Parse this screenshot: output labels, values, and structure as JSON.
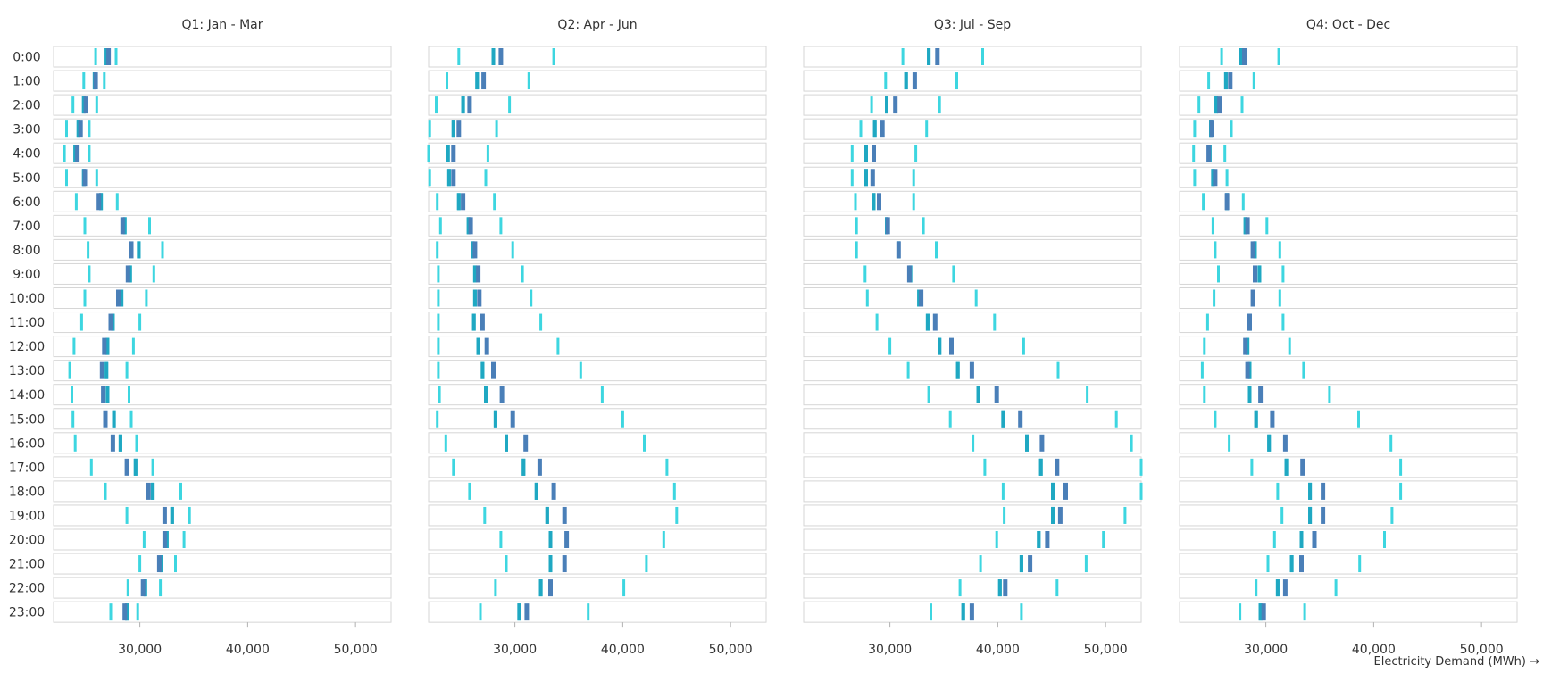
{
  "chart_data": {
    "type": "tick-strip",
    "x_axis_label": "Electricity Demand (MWh) →",
    "x_ticks": [
      30000,
      40000,
      50000
    ],
    "x_tick_labels": [
      "30,000",
      "40,000",
      "50,000"
    ],
    "xlim": [
      22000,
      53300
    ],
    "hours": [
      "0:00",
      "1:00",
      "2:00",
      "3:00",
      "4:00",
      "5:00",
      "6:00",
      "7:00",
      "8:00",
      "9:00",
      "10:00",
      "11:00",
      "12:00",
      "13:00",
      "14:00",
      "15:00",
      "16:00",
      "17:00",
      "18:00",
      "19:00",
      "20:00",
      "21:00",
      "22:00",
      "23:00"
    ],
    "colors": {
      "light": "#3dd6e0",
      "mid": "#1fa8c2",
      "dark": "#4a7fb8",
      "box_border": "#d6d6d6"
    },
    "marker_order": [
      "light_low",
      "mid_low",
      "dark",
      "mid_high",
      "light_high"
    ],
    "panels": [
      {
        "title": "Q1: Jan - Mar",
        "rows": [
          [
            25900,
            26900,
            27100,
            26900,
            27800
          ],
          [
            24800,
            25800,
            25900,
            25800,
            26700
          ],
          [
            23800,
            24800,
            25000,
            24800,
            26000
          ],
          [
            23200,
            24300,
            24500,
            24300,
            25300
          ],
          [
            23000,
            24000,
            24200,
            24000,
            25300
          ],
          [
            23200,
            24800,
            24900,
            24800,
            26000
          ],
          [
            24100,
            26400,
            26200,
            26400,
            27900
          ],
          [
            24900,
            28600,
            28400,
            28600,
            30900
          ],
          [
            25200,
            29900,
            29200,
            29900,
            32100
          ],
          [
            25300,
            29100,
            28900,
            29100,
            31300
          ],
          [
            24900,
            28300,
            28000,
            28300,
            30600
          ],
          [
            24600,
            27500,
            27300,
            27500,
            30000
          ],
          [
            23900,
            27000,
            26700,
            27000,
            29400
          ],
          [
            23500,
            26900,
            26500,
            26900,
            28800
          ],
          [
            23700,
            27000,
            26600,
            27000,
            29000
          ],
          [
            23800,
            27600,
            26800,
            27600,
            29200
          ],
          [
            24000,
            28200,
            27500,
            28200,
            29700
          ],
          [
            25500,
            29600,
            28800,
            29600,
            31200
          ],
          [
            26800,
            31200,
            30800,
            31200,
            33800
          ],
          [
            28800,
            33000,
            32300,
            33000,
            34600
          ],
          [
            30400,
            32500,
            32300,
            32500,
            34100
          ],
          [
            30000,
            32000,
            31800,
            32000,
            33300
          ],
          [
            28900,
            30500,
            30300,
            30500,
            31900
          ],
          [
            27300,
            28800,
            28600,
            28800,
            29800
          ]
        ]
      },
      {
        "title": "Q2: Apr - Jun",
        "rows": [
          [
            24800,
            28000,
            28700,
            28000,
            33600
          ],
          [
            23700,
            26500,
            27100,
            26500,
            31300
          ],
          [
            22700,
            25200,
            25800,
            25200,
            29500
          ],
          [
            22100,
            24300,
            24800,
            24300,
            28300
          ],
          [
            22000,
            23800,
            24300,
            23800,
            27500
          ],
          [
            22100,
            23900,
            24300,
            23900,
            27300
          ],
          [
            22800,
            24800,
            25200,
            24800,
            28100
          ],
          [
            23100,
            25700,
            25900,
            25700,
            28700
          ],
          [
            22800,
            26100,
            26300,
            26100,
            29800
          ],
          [
            22900,
            26300,
            26600,
            26300,
            30700
          ],
          [
            22900,
            26300,
            26700,
            26300,
            31500
          ],
          [
            22900,
            26200,
            27000,
            26200,
            32400
          ],
          [
            22900,
            26600,
            27400,
            26600,
            34000
          ],
          [
            22900,
            27000,
            28000,
            27000,
            36100
          ],
          [
            23000,
            27300,
            28800,
            27300,
            38100
          ],
          [
            22800,
            28200,
            29800,
            28200,
            40000
          ],
          [
            23600,
            29200,
            31000,
            29200,
            42000
          ],
          [
            24300,
            30800,
            32300,
            30800,
            44100
          ],
          [
            25800,
            32000,
            33600,
            32000,
            44800
          ],
          [
            27200,
            33000,
            34600,
            33000,
            45000
          ],
          [
            28700,
            33300,
            34800,
            33300,
            43800
          ],
          [
            29200,
            33300,
            34600,
            33300,
            42200
          ],
          [
            28200,
            32400,
            33300,
            32400,
            40100
          ],
          [
            26800,
            30400,
            31100,
            30400,
            36800
          ]
        ]
      },
      {
        "title": "Q3: Jul - Sep",
        "rows": [
          [
            31200,
            33600,
            34400,
            33600,
            38600
          ],
          [
            29600,
            31500,
            32300,
            31500,
            36200
          ],
          [
            28300,
            29700,
            30500,
            29700,
            34600
          ],
          [
            27300,
            28600,
            29300,
            28600,
            33400
          ],
          [
            26500,
            27800,
            28500,
            27800,
            32400
          ],
          [
            26500,
            27800,
            28400,
            27800,
            32200
          ],
          [
            26800,
            28500,
            29000,
            28500,
            32200
          ],
          [
            26900,
            29700,
            29800,
            29700,
            33100
          ],
          [
            26900,
            30800,
            30800,
            30800,
            34300
          ],
          [
            27700,
            31900,
            31800,
            31900,
            35900
          ],
          [
            27900,
            32700,
            32900,
            32700,
            38000
          ],
          [
            28800,
            33500,
            34200,
            33500,
            39700
          ],
          [
            30000,
            34600,
            35700,
            34600,
            42400
          ],
          [
            31700,
            36300,
            37600,
            36300,
            45600
          ],
          [
            33600,
            38200,
            39900,
            38200,
            48300
          ],
          [
            35600,
            40500,
            42100,
            40500,
            51000
          ],
          [
            37700,
            42700,
            44100,
            42700,
            52400
          ],
          [
            38800,
            44000,
            45500,
            44000,
            53300
          ],
          [
            40500,
            45100,
            46300,
            45100,
            53300
          ],
          [
            40600,
            45100,
            45800,
            45100,
            51800
          ],
          [
            39900,
            43800,
            44600,
            43800,
            49800
          ],
          [
            38400,
            42200,
            43000,
            42200,
            48200
          ],
          [
            36500,
            40200,
            40700,
            40200,
            45500
          ],
          [
            33800,
            36800,
            37600,
            36800,
            42200
          ]
        ]
      },
      {
        "title": "Q4: Oct - Dec",
        "rows": [
          [
            25900,
            27700,
            28000,
            27700,
            31200
          ],
          [
            24700,
            26300,
            26700,
            26300,
            28900
          ],
          [
            23800,
            25400,
            25700,
            25400,
            27800
          ],
          [
            23400,
            24900,
            25000,
            24900,
            26800
          ],
          [
            23300,
            24800,
            24700,
            24800,
            26200
          ],
          [
            23400,
            25100,
            25300,
            25100,
            26400
          ],
          [
            24200,
            26400,
            26400,
            26400,
            27900
          ],
          [
            25100,
            28100,
            28300,
            28100,
            30100
          ],
          [
            25300,
            29000,
            28800,
            29000,
            31300
          ],
          [
            25600,
            29400,
            29000,
            29400,
            31600
          ],
          [
            25200,
            28800,
            28800,
            28800,
            31300
          ],
          [
            24600,
            28500,
            28500,
            28500,
            31600
          ],
          [
            24300,
            28300,
            28100,
            28300,
            32200
          ],
          [
            24100,
            28500,
            28300,
            28500,
            33500
          ],
          [
            24300,
            28500,
            29500,
            28500,
            35900
          ],
          [
            25300,
            29100,
            30600,
            29100,
            38600
          ],
          [
            26600,
            30300,
            31800,
            30300,
            41600
          ],
          [
            28700,
            31900,
            33400,
            31900,
            42500
          ],
          [
            31100,
            34100,
            35300,
            34100,
            42500
          ],
          [
            31500,
            34100,
            35300,
            34100,
            41700
          ],
          [
            30800,
            33300,
            34500,
            33300,
            41000
          ],
          [
            30200,
            32400,
            33300,
            32400,
            38700
          ],
          [
            29100,
            31100,
            31800,
            31100,
            36500
          ],
          [
            27600,
            29500,
            29800,
            29500,
            33600
          ]
        ]
      }
    ]
  }
}
